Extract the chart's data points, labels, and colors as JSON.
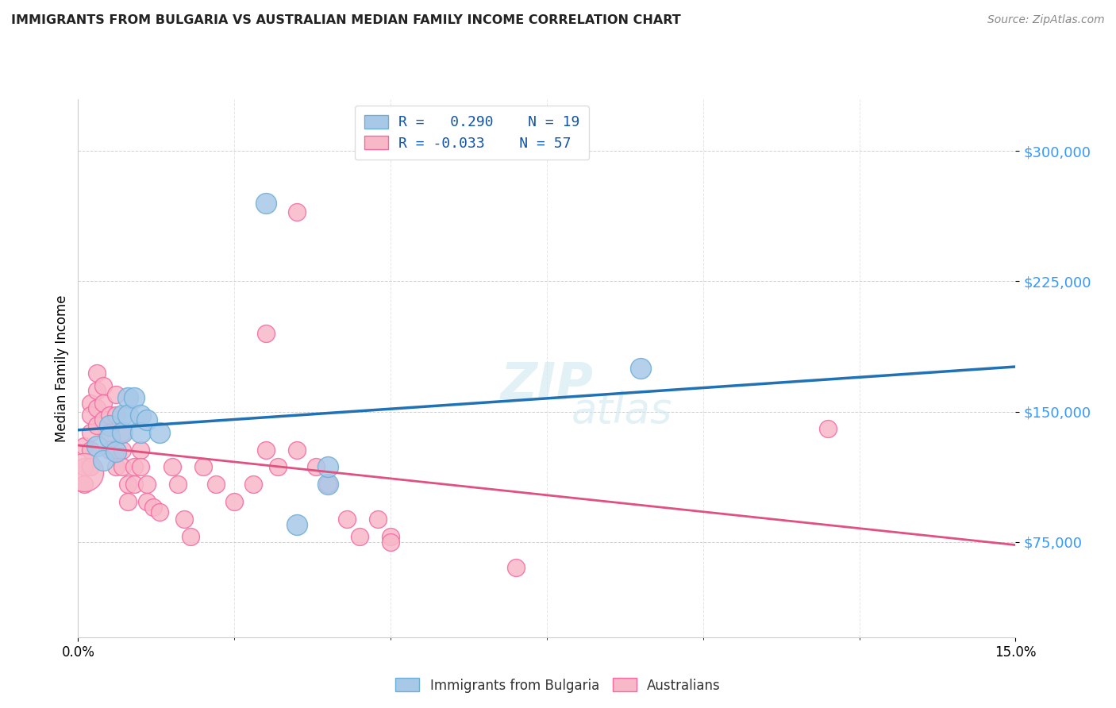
{
  "title": "IMMIGRANTS FROM BULGARIA VS AUSTRALIAN MEDIAN FAMILY INCOME CORRELATION CHART",
  "source": "Source: ZipAtlas.com",
  "ylabel": "Median Family Income",
  "watermark_line1": "ZIP",
  "watermark_line2": "atlas",
  "yticks": [
    75000,
    150000,
    225000,
    300000
  ],
  "ytick_labels": [
    "$75,000",
    "$150,000",
    "$225,000",
    "$300,000"
  ],
  "xlim": [
    0.0,
    0.15
  ],
  "ylim": [
    20000,
    330000
  ],
  "blue_color": "#a8c8e8",
  "blue_edge": "#6baed6",
  "pink_color": "#f7b8c8",
  "pink_edge": "#f768a1",
  "blue_line_color": "#2171b5",
  "pink_line_color": "#e05080",
  "blue_dashed_color": "#aaaaaa",
  "blue_scatter": [
    [
      0.003,
      130000
    ],
    [
      0.004,
      122000
    ],
    [
      0.005,
      142000
    ],
    [
      0.005,
      135000
    ],
    [
      0.006,
      127000
    ],
    [
      0.007,
      148000
    ],
    [
      0.007,
      138000
    ],
    [
      0.008,
      158000
    ],
    [
      0.008,
      148000
    ],
    [
      0.009,
      158000
    ],
    [
      0.01,
      148000
    ],
    [
      0.01,
      138000
    ],
    [
      0.011,
      145000
    ],
    [
      0.013,
      138000
    ],
    [
      0.035,
      85000
    ],
    [
      0.04,
      108000
    ],
    [
      0.04,
      118000
    ],
    [
      0.09,
      175000
    ],
    [
      0.03,
      270000
    ]
  ],
  "pink_scatter": [
    [
      0.001,
      130000
    ],
    [
      0.001,
      118000
    ],
    [
      0.001,
      108000
    ],
    [
      0.002,
      155000
    ],
    [
      0.002,
      148000
    ],
    [
      0.002,
      138000
    ],
    [
      0.002,
      128000
    ],
    [
      0.002,
      118000
    ],
    [
      0.003,
      172000
    ],
    [
      0.003,
      162000
    ],
    [
      0.003,
      152000
    ],
    [
      0.003,
      142000
    ],
    [
      0.004,
      165000
    ],
    [
      0.004,
      155000
    ],
    [
      0.004,
      145000
    ],
    [
      0.005,
      148000
    ],
    [
      0.005,
      138000
    ],
    [
      0.005,
      128000
    ],
    [
      0.006,
      160000
    ],
    [
      0.006,
      148000
    ],
    [
      0.006,
      128000
    ],
    [
      0.006,
      118000
    ],
    [
      0.007,
      138000
    ],
    [
      0.007,
      128000
    ],
    [
      0.007,
      118000
    ],
    [
      0.008,
      108000
    ],
    [
      0.008,
      98000
    ],
    [
      0.009,
      118000
    ],
    [
      0.009,
      108000
    ],
    [
      0.01,
      128000
    ],
    [
      0.01,
      118000
    ],
    [
      0.011,
      108000
    ],
    [
      0.011,
      98000
    ],
    [
      0.012,
      95000
    ],
    [
      0.013,
      92000
    ],
    [
      0.015,
      118000
    ],
    [
      0.016,
      108000
    ],
    [
      0.017,
      88000
    ],
    [
      0.018,
      78000
    ],
    [
      0.02,
      118000
    ],
    [
      0.022,
      108000
    ],
    [
      0.025,
      98000
    ],
    [
      0.028,
      108000
    ],
    [
      0.03,
      128000
    ],
    [
      0.032,
      118000
    ],
    [
      0.035,
      128000
    ],
    [
      0.038,
      118000
    ],
    [
      0.04,
      108000
    ],
    [
      0.043,
      88000
    ],
    [
      0.045,
      78000
    ],
    [
      0.048,
      88000
    ],
    [
      0.05,
      78000
    ],
    [
      0.03,
      195000
    ],
    [
      0.035,
      265000
    ],
    [
      0.05,
      75000
    ],
    [
      0.07,
      60000
    ],
    [
      0.12,
      140000
    ]
  ],
  "blue_scatter_size": 350,
  "pink_scatter_size": 250,
  "large_pink_size": 1200
}
